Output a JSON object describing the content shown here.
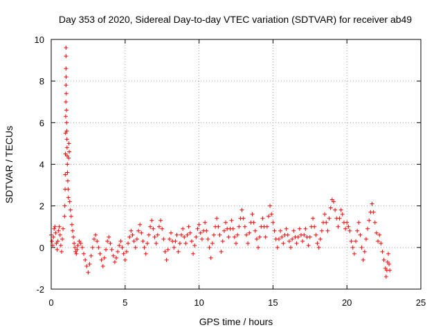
{
  "chart_data": {
    "type": "scatter",
    "title": "Day 353 of 2020, Sidereal Day-to-day VTEC variation (SDTVAR) for receiver ab49",
    "xlabel": "GPS time / hours",
    "ylabel": "SDTVAR / TECUs",
    "xlim": [
      0,
      25
    ],
    "ylim": [
      -2,
      10
    ],
    "xticks": [
      0,
      5,
      10,
      15,
      20,
      25
    ],
    "yticks": [
      -2,
      0,
      2,
      4,
      6,
      8,
      10
    ],
    "grid": true,
    "marker": "plus",
    "color": "#ff0000",
    "series": [
      {
        "name": "SDTVAR",
        "points": [
          [
            0.0,
            0.6
          ],
          [
            0.05,
            0.3
          ],
          [
            0.1,
            0.1
          ],
          [
            0.15,
            0.5
          ],
          [
            0.2,
            0.9
          ],
          [
            0.25,
            1.0
          ],
          [
            0.3,
            0.7
          ],
          [
            0.35,
            0.2
          ],
          [
            0.4,
            -0.1
          ],
          [
            0.45,
            0.3
          ],
          [
            0.5,
            0.8
          ],
          [
            0.55,
            1.0
          ],
          [
            0.6,
            0.6
          ],
          [
            0.65,
            0.1
          ],
          [
            0.7,
            -0.2
          ],
          [
            0.75,
            0.4
          ],
          [
            0.8,
            0.9
          ],
          [
            0.9,
            1.5
          ],
          [
            0.92,
            2.0
          ],
          [
            0.94,
            2.8
          ],
          [
            0.95,
            3.5
          ],
          [
            0.96,
            4.5
          ],
          [
            0.97,
            5.5
          ],
          [
            0.98,
            6.3
          ],
          [
            0.99,
            7.0
          ],
          [
            1.0,
            7.8
          ],
          [
            1.0,
            8.6
          ],
          [
            1.0,
            9.2
          ],
          [
            1.0,
            9.6
          ],
          [
            1.01,
            8.2
          ],
          [
            1.02,
            7.4
          ],
          [
            1.03,
            6.6
          ],
          [
            1.04,
            6.0
          ],
          [
            1.05,
            5.6
          ],
          [
            1.06,
            5.2
          ],
          [
            1.07,
            4.8
          ],
          [
            1.08,
            4.4
          ],
          [
            1.09,
            4.0
          ],
          [
            1.1,
            3.6
          ],
          [
            1.12,
            3.2
          ],
          [
            1.14,
            2.8
          ],
          [
            1.16,
            2.4
          ],
          [
            1.18,
            4.3
          ],
          [
            1.2,
            5.0
          ],
          [
            1.22,
            4.6
          ],
          [
            1.25,
            2.2
          ],
          [
            1.3,
            1.8
          ],
          [
            1.35,
            1.5
          ],
          [
            1.4,
            1.1
          ],
          [
            1.45,
            0.8
          ],
          [
            1.5,
            0.5
          ],
          [
            1.55,
            0.2
          ],
          [
            1.6,
            0.0
          ],
          [
            1.65,
            -0.2
          ],
          [
            1.7,
            -0.3
          ],
          [
            1.75,
            -0.1
          ],
          [
            1.8,
            0.1
          ],
          [
            1.9,
            0.3
          ],
          [
            2.0,
            0.2
          ],
          [
            2.1,
            0.0
          ],
          [
            2.2,
            -0.3
          ],
          [
            2.3,
            -0.6
          ],
          [
            2.4,
            -0.9
          ],
          [
            2.5,
            -1.2
          ],
          [
            2.6,
            -0.8
          ],
          [
            2.7,
            -0.4
          ],
          [
            2.8,
            0.0
          ],
          [
            2.9,
            0.4
          ],
          [
            3.0,
            0.6
          ],
          [
            3.1,
            0.3
          ],
          [
            3.2,
            0.0
          ],
          [
            3.3,
            -0.3
          ],
          [
            3.4,
            -0.6
          ],
          [
            3.5,
            -0.9
          ],
          [
            3.6,
            -0.5
          ],
          [
            3.7,
            -0.1
          ],
          [
            3.8,
            0.3
          ],
          [
            3.9,
            0.5
          ],
          [
            4.0,
            0.2
          ],
          [
            4.1,
            -0.1
          ],
          [
            4.2,
            -0.4
          ],
          [
            4.3,
            -0.7
          ],
          [
            4.4,
            -0.5
          ],
          [
            4.5,
            -0.2
          ],
          [
            4.6,
            0.1
          ],
          [
            4.7,
            0.3
          ],
          [
            4.8,
            0.0
          ],
          [
            4.9,
            -0.3
          ],
          [
            5.0,
            -0.6
          ],
          [
            5.1,
            -0.2
          ],
          [
            5.2,
            0.2
          ],
          [
            5.3,
            0.5
          ],
          [
            5.4,
            0.8
          ],
          [
            5.5,
            0.6
          ],
          [
            5.6,
            0.3
          ],
          [
            5.7,
            0.0
          ],
          [
            5.8,
            0.4
          ],
          [
            5.9,
            0.8
          ],
          [
            6.0,
            1.1
          ],
          [
            6.1,
            0.7
          ],
          [
            6.2,
            0.3
          ],
          [
            6.3,
            0.0
          ],
          [
            6.4,
            -0.3
          ],
          [
            6.5,
            0.2
          ],
          [
            6.6,
            0.6
          ],
          [
            6.7,
            1.0
          ],
          [
            6.8,
            1.3
          ],
          [
            6.9,
            0.9
          ],
          [
            7.0,
            0.5
          ],
          [
            7.1,
            0.2
          ],
          [
            7.2,
            0.6
          ],
          [
            7.3,
            1.0
          ],
          [
            7.4,
            1.3
          ],
          [
            7.5,
            0.9
          ],
          [
            7.6,
            0.4
          ],
          [
            7.7,
            -0.2
          ],
          [
            7.8,
            -0.6
          ],
          [
            7.9,
            -0.1
          ],
          [
            8.0,
            0.4
          ],
          [
            8.1,
            0.7
          ],
          [
            8.2,
            0.3
          ],
          [
            8.3,
            0.0
          ],
          [
            8.4,
            0.3
          ],
          [
            8.5,
            0.6
          ],
          [
            8.6,
            -0.2
          ],
          [
            8.7,
            0.2
          ],
          [
            8.8,
            0.6
          ],
          [
            8.9,
            0.9
          ],
          [
            9.0,
            0.5
          ],
          [
            9.1,
            0.2
          ],
          [
            9.2,
            0.6
          ],
          [
            9.3,
            1.0
          ],
          [
            9.4,
            0.7
          ],
          [
            9.5,
            0.3
          ],
          [
            9.6,
            -0.3
          ],
          [
            9.7,
            0.1
          ],
          [
            9.8,
            0.5
          ],
          [
            9.9,
            0.9
          ],
          [
            10.0,
            1.1
          ],
          [
            10.1,
            0.7
          ],
          [
            10.2,
            0.4
          ],
          [
            10.3,
            0.8
          ],
          [
            10.4,
            1.2
          ],
          [
            10.5,
            0.8
          ],
          [
            10.6,
            0.4
          ],
          [
            10.7,
            0.0
          ],
          [
            10.8,
            -0.5
          ],
          [
            10.9,
            0.2
          ],
          [
            11.0,
            0.6
          ],
          [
            11.1,
            1.0
          ],
          [
            11.2,
            1.4
          ],
          [
            11.3,
            1.0
          ],
          [
            11.4,
            0.6
          ],
          [
            11.5,
            -0.2
          ],
          [
            11.6,
            0.3
          ],
          [
            11.7,
            0.8
          ],
          [
            11.8,
            1.2
          ],
          [
            11.9,
            0.9
          ],
          [
            12.0,
            0.5
          ],
          [
            12.1,
            0.9
          ],
          [
            12.2,
            1.3
          ],
          [
            12.3,
            0.9
          ],
          [
            12.4,
            0.5
          ],
          [
            12.5,
            0.2
          ],
          [
            12.6,
            0.6
          ],
          [
            12.7,
            1.0
          ],
          [
            12.8,
            1.4
          ],
          [
            12.9,
            1.8
          ],
          [
            13.0,
            1.4
          ],
          [
            13.1,
            1.0
          ],
          [
            13.2,
            0.6
          ],
          [
            13.3,
            0.2
          ],
          [
            13.4,
            0.7
          ],
          [
            13.5,
            1.2
          ],
          [
            13.6,
            1.6
          ],
          [
            13.7,
            1.2
          ],
          [
            13.8,
            0.8
          ],
          [
            13.9,
            0.4
          ],
          [
            14.0,
            0.0
          ],
          [
            14.1,
            0.5
          ],
          [
            14.2,
            1.0
          ],
          [
            14.3,
            1.4
          ],
          [
            14.4,
            1.0
          ],
          [
            14.5,
            0.5
          ],
          [
            14.6,
            1.0
          ],
          [
            14.7,
            1.5
          ],
          [
            14.8,
            2.0
          ],
          [
            14.9,
            1.6
          ],
          [
            15.0,
            1.2
          ],
          [
            15.1,
            0.8
          ],
          [
            15.2,
            0.4
          ],
          [
            15.3,
            0.0
          ],
          [
            15.4,
            0.4
          ],
          [
            15.5,
            0.8
          ],
          [
            15.6,
            0.5
          ],
          [
            15.7,
            0.2
          ],
          [
            15.8,
            0.6
          ],
          [
            15.9,
            0.9
          ],
          [
            16.0,
            0.6
          ],
          [
            16.1,
            0.3
          ],
          [
            16.2,
            0.0
          ],
          [
            16.3,
            0.4
          ],
          [
            16.4,
            0.8
          ],
          [
            16.5,
            0.5
          ],
          [
            16.6,
            0.2
          ],
          [
            16.7,
            0.5
          ],
          [
            16.8,
            0.9
          ],
          [
            16.9,
            0.6
          ],
          [
            17.0,
            0.3
          ],
          [
            17.1,
            0.6
          ],
          [
            17.2,
            0.9
          ],
          [
            17.3,
            0.5
          ],
          [
            17.4,
            0.1
          ],
          [
            17.5,
            0.5
          ],
          [
            17.6,
            1.0
          ],
          [
            17.7,
            1.4
          ],
          [
            17.8,
            1.0
          ],
          [
            17.9,
            0.6
          ],
          [
            18.0,
            0.2
          ],
          [
            18.1,
            0.0
          ],
          [
            18.2,
            0.4
          ],
          [
            18.3,
            0.8
          ],
          [
            18.4,
            1.2
          ],
          [
            18.5,
            1.6
          ],
          [
            18.6,
            1.2
          ],
          [
            18.7,
            0.8
          ],
          [
            18.8,
            1.4
          ],
          [
            18.9,
            1.9
          ],
          [
            19.0,
            2.3
          ],
          [
            19.1,
            2.2
          ],
          [
            19.2,
            1.8
          ],
          [
            19.3,
            1.4
          ],
          [
            19.4,
            1.0
          ],
          [
            19.5,
            1.4
          ],
          [
            19.6,
            1.8
          ],
          [
            19.7,
            1.6
          ],
          [
            19.8,
            1.2
          ],
          [
            19.9,
            0.9
          ],
          [
            20.0,
            1.2
          ],
          [
            20.1,
            1.0
          ],
          [
            20.2,
            0.8
          ],
          [
            20.3,
            0.3
          ],
          [
            20.4,
            0.0
          ],
          [
            20.5,
            -0.3
          ],
          [
            20.6,
            0.3
          ],
          [
            20.7,
            0.8
          ],
          [
            20.8,
            1.2
          ],
          [
            20.9,
            0.6
          ],
          [
            21.0,
            0.0
          ],
          [
            21.1,
            -0.6
          ],
          [
            21.2,
            -0.2
          ],
          [
            21.3,
            0.4
          ],
          [
            21.4,
            0.9
          ],
          [
            21.5,
            1.3
          ],
          [
            21.6,
            1.7
          ],
          [
            21.7,
            2.1
          ],
          [
            21.8,
            1.7
          ],
          [
            21.9,
            1.2
          ],
          [
            22.0,
            0.7
          ],
          [
            22.1,
            0.3
          ],
          [
            22.2,
            0.6
          ],
          [
            22.3,
            0.2
          ],
          [
            22.4,
            -0.2
          ],
          [
            22.5,
            -0.6
          ],
          [
            22.6,
            -1.0
          ],
          [
            22.65,
            -1.4
          ],
          [
            22.7,
            -1.1
          ],
          [
            22.75,
            -0.7
          ],
          [
            22.8,
            -0.3
          ],
          [
            22.85,
            -0.8
          ],
          [
            22.9,
            -1.1
          ]
        ]
      }
    ]
  }
}
